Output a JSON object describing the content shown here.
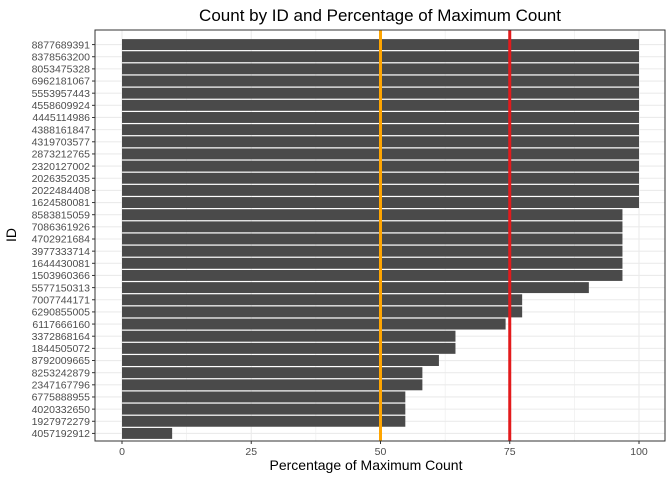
{
  "chart_data": {
    "type": "bar",
    "orientation": "horizontal",
    "title": "Count by ID and Percentage of Maximum Count",
    "xlabel": "Percentage of Maximum Count",
    "ylabel": "ID",
    "xlim": [
      0,
      100
    ],
    "x_ticks": [
      "0",
      "25",
      "50",
      "75",
      "100"
    ],
    "x_tick_values": [
      0,
      25,
      50,
      75,
      100
    ],
    "grid": true,
    "bar_color": "#4a4a4a",
    "reference_lines": [
      {
        "x": 50,
        "color": "#ffa500"
      },
      {
        "x": 75,
        "color": "#e31a1c"
      }
    ],
    "categories": [
      "8877689391",
      "8378563200",
      "8053475328",
      "6962181067",
      "5553957443",
      "4558609924",
      "4445114986",
      "4388161847",
      "4319703577",
      "2873212765",
      "2320127002",
      "2026352035",
      "2022484408",
      "1624580081",
      "8583815059",
      "7086361926",
      "4702921684",
      "3977333714",
      "1644430081",
      "1503960366",
      "5577150313",
      "7007744171",
      "6290855005",
      "6117666160",
      "3372868164",
      "1844505072",
      "8792009665",
      "8253242879",
      "2347167796",
      "6775888955",
      "4020332650",
      "1927972279",
      "4057192912"
    ],
    "values": [
      100,
      100,
      100,
      100,
      100,
      100,
      100,
      100,
      100,
      100,
      100,
      100,
      100,
      100,
      96.8,
      96.8,
      96.8,
      96.8,
      96.8,
      96.8,
      90.3,
      77.4,
      77.4,
      74.2,
      64.5,
      64.5,
      61.3,
      58.1,
      58.1,
      54.8,
      54.8,
      54.8,
      9.7
    ]
  }
}
